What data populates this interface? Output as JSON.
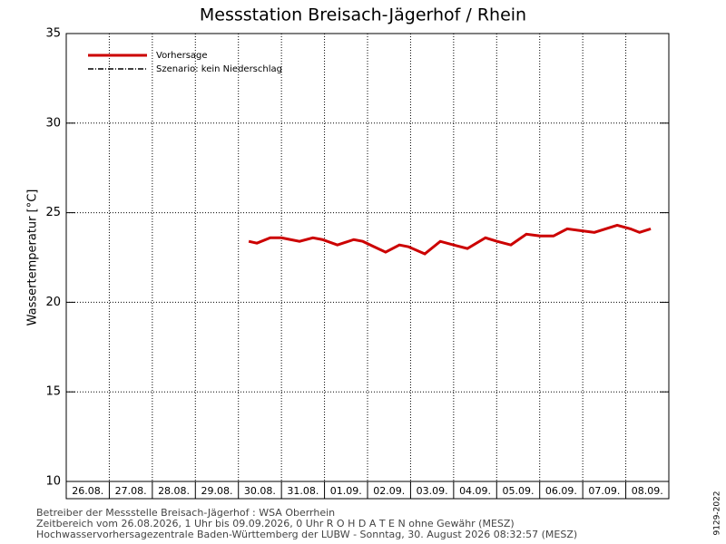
{
  "chart_data": {
    "type": "line",
    "title": "Messstation Breisach-Jägerhof / Rhein",
    "ylabel": "Wassertemperatur [°C]",
    "categories": [
      "26.08.",
      "27.08.",
      "28.08.",
      "29.08.",
      "30.08.",
      "31.08.",
      "01.09.",
      "02.09.",
      "03.09.",
      "04.09.",
      "05.09.",
      "06.09.",
      "07.09.",
      "08.09."
    ],
    "xlim": [
      0,
      14
    ],
    "ylim": [
      10,
      35
    ],
    "yticks": [
      10,
      15,
      20,
      25,
      30,
      35
    ],
    "grid": true,
    "legend": "top-left",
    "series": [
      {
        "name": "Vorhersage",
        "color": "#cc0000",
        "x": [
          4.24,
          4.43,
          4.74,
          5.0,
          5.21,
          5.42,
          5.73,
          5.95,
          6.3,
          6.68,
          6.89,
          7.15,
          7.42,
          7.74,
          7.95,
          8.33,
          8.69,
          9.0,
          9.32,
          9.74,
          10.01,
          10.33,
          10.69,
          11.01,
          11.32,
          11.64,
          11.95,
          12.27,
          12.8,
          13.11,
          13.32,
          13.58
        ],
        "values": [
          23.4,
          23.3,
          23.6,
          23.6,
          23.5,
          23.4,
          23.6,
          23.5,
          23.2,
          23.5,
          23.4,
          23.1,
          22.8,
          23.2,
          23.1,
          22.7,
          23.4,
          23.2,
          23.0,
          23.6,
          23.4,
          23.2,
          23.8,
          23.7,
          23.7,
          24.1,
          24.0,
          23.9,
          24.3,
          24.1,
          23.9,
          24.1
        ]
      },
      {
        "name": "Szenario: kein Niederschlag",
        "color": "#000000",
        "x": [],
        "values": []
      }
    ]
  },
  "footer": [
    "Betreiber der Messstelle Breisach-Jägerhof : WSA Oberrhein",
    "Zeitbereich vom 26.08.2026, 1 Uhr bis 09.09.2026, 0 Uhr   R O H D A T E N ohne Gewähr (MESZ)",
    "Hochwasservorhersagezentrale Baden-Württemberg der LUBW - Sonntag, 30. August 2026 08:32:57 (MESZ)"
  ],
  "code": "9129-2022"
}
